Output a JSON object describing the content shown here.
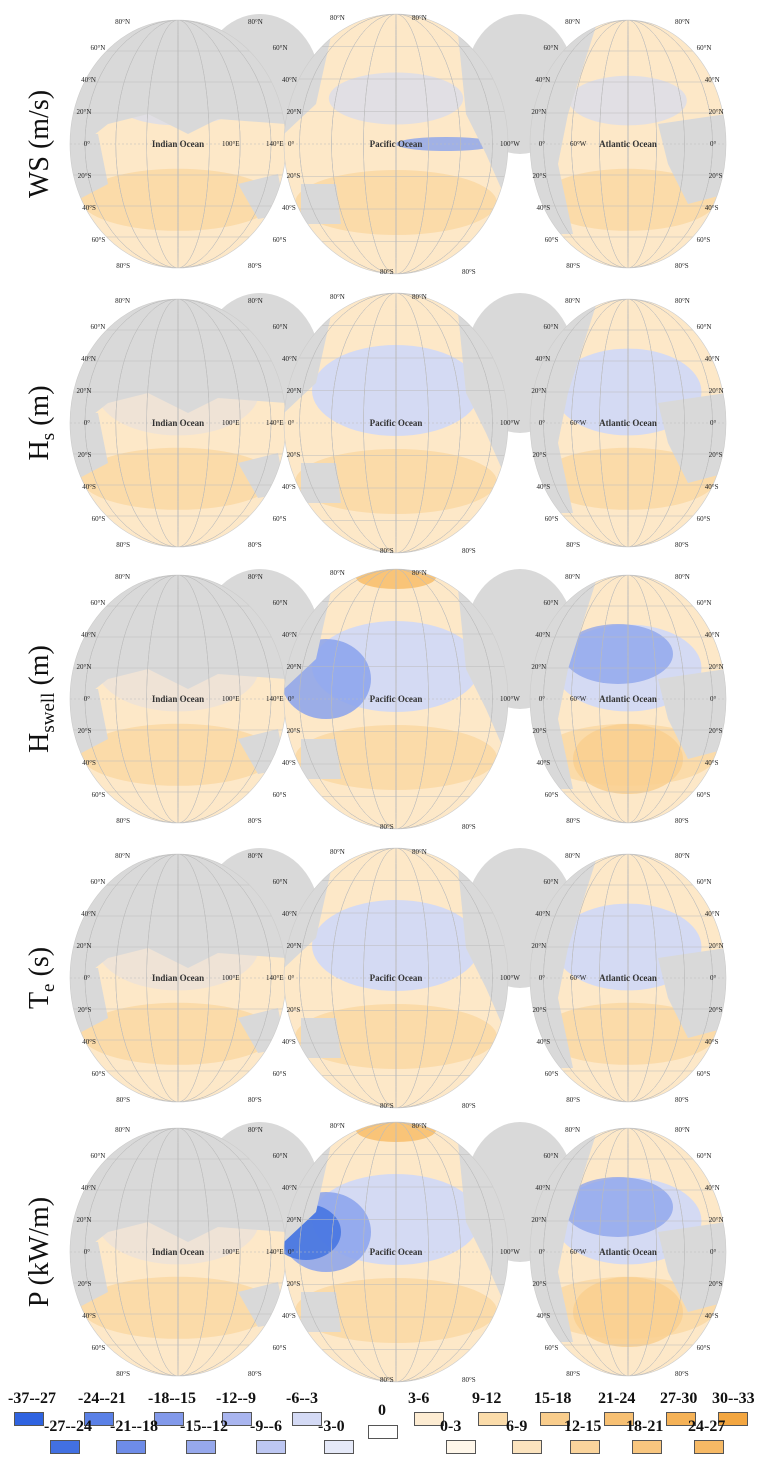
{
  "rows": [
    {
      "label": "WS (m/s)"
    },
    {
      "label": "Hs (m)",
      "base": "H",
      "sub": "s",
      "unit": " (m)"
    },
    {
      "label": "Hswell (m)",
      "base": "H",
      "sub": "swell",
      "unit": " (m)"
    },
    {
      "label": "Te (s)",
      "base": "T",
      "sub": "e",
      "unit": " (s)"
    },
    {
      "label": "P (kW/m)"
    }
  ],
  "oceans": {
    "indian": "Indian Ocean",
    "pacific": "Pacific Ocean",
    "atlantic": "Atlantic Ocean"
  },
  "lat_ticks": {
    "n80": "80°N",
    "n60": "60°N",
    "n40": "40°N",
    "n20": "20°N",
    "eq": "0°",
    "s20": "20°S",
    "s40": "40°S",
    "s60": "60°S",
    "s80": "80°S"
  },
  "lon_ticks": {
    "e100": "100°E",
    "e140": "140°E",
    "w100": "100°W",
    "w60": "60°W"
  },
  "colors": {
    "land": "#d9d9d9",
    "blue_strong": "#3d6fe0",
    "blue_mid": "#8aa2ec",
    "blue_light": "#cfd8f7",
    "orange_light": "#fde8c8",
    "orange_mid": "#f9cf8f",
    "orange_strong": "#f6b556"
  },
  "legend": {
    "zero": "0",
    "negative_top": [
      "-37--27",
      "-24--21",
      "-18--15",
      "-12--9",
      "-6--3"
    ],
    "negative_top_colors": [
      "#2f63e0",
      "#5a80e6",
      "#8299ea",
      "#a9b5ef",
      "#d4daf5"
    ],
    "negative_bottom": [
      "-27--24",
      "-21--18",
      "-15--12",
      "-9--6",
      "-3-0"
    ],
    "negative_bottom_colors": [
      "#4270e2",
      "#6e8ce8",
      "#96a8ec",
      "#bdc7f2",
      "#e5e9f8"
    ],
    "positive_top": [
      "3-6",
      "9-12",
      "15-18",
      "21-24",
      "27-30",
      "30--33"
    ],
    "positive_top_colors": [
      "#fdecd2",
      "#fbdcaa",
      "#f9cd8c",
      "#f7c073",
      "#f5b257",
      "#f3a640"
    ],
    "positive_bottom": [
      "0-3",
      "6-9",
      "12-15",
      "18-21",
      "24-27"
    ],
    "positive_bottom_colors": [
      "#fff7ea",
      "#fbe3be",
      "#fad49c",
      "#f8c67f",
      "#f6b965"
    ]
  }
}
